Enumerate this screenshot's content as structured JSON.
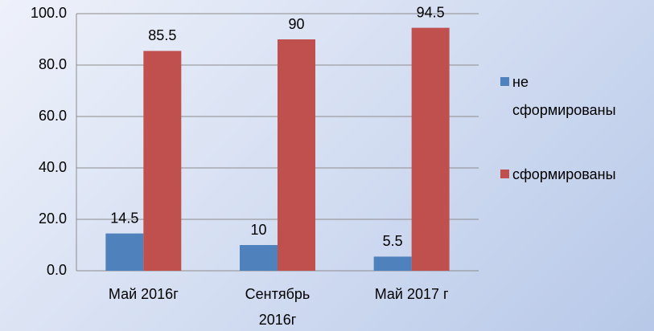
{
  "chart_data": {
    "type": "bar",
    "categories": [
      "Май 2016г",
      "Сентябрь 2016г",
      "Май 2017 г"
    ],
    "series": [
      {
        "name": "не сформированы",
        "color": "#4f81bd",
        "values": [
          14.5,
          10,
          5.5
        ]
      },
      {
        "name": "сформированы",
        "color": "#c0504d",
        "values": [
          85.5,
          90,
          94.5
        ]
      }
    ],
    "ylim": [
      0,
      100
    ],
    "yticks": [
      {
        "value": 0,
        "label": "0.0"
      },
      {
        "value": 20,
        "label": "20.0"
      },
      {
        "value": 40,
        "label": "40.0"
      },
      {
        "value": 60,
        "label": "60.0"
      },
      {
        "value": 80,
        "label": "80.0"
      },
      {
        "value": 100,
        "label": "100.0"
      }
    ],
    "grid": true,
    "legend": "right"
  }
}
